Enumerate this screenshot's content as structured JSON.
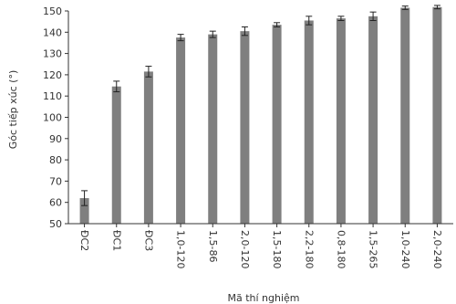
{
  "chart_data": {
    "type": "bar",
    "xlabel": "Mã thí nghiệm",
    "ylabel": "Góc tiếp xúc (°)",
    "ylim": [
      50,
      150
    ],
    "yticks": [
      50,
      60,
      70,
      80,
      90,
      100,
      110,
      120,
      130,
      140,
      150
    ],
    "grid": false,
    "categories": [
      "ĐC2",
      "ĐC1",
      "ĐC3",
      "1,0-120",
      "1,5-86",
      "2,0-120",
      "1,5-180",
      "2,2-180",
      "0,8-180",
      "1,5-265",
      "1,0-240",
      "2,0-240"
    ],
    "values": [
      62,
      114.5,
      121.5,
      137.5,
      139,
      140.5,
      143.5,
      145.5,
      146.5,
      147.5,
      151.5,
      151.8
    ],
    "errors": [
      3.5,
      2.5,
      2.5,
      1.5,
      1.5,
      2.0,
      1.0,
      2.0,
      1.0,
      2.0,
      0.8,
      0.8
    ],
    "bar_color": "#7f7f7f"
  }
}
